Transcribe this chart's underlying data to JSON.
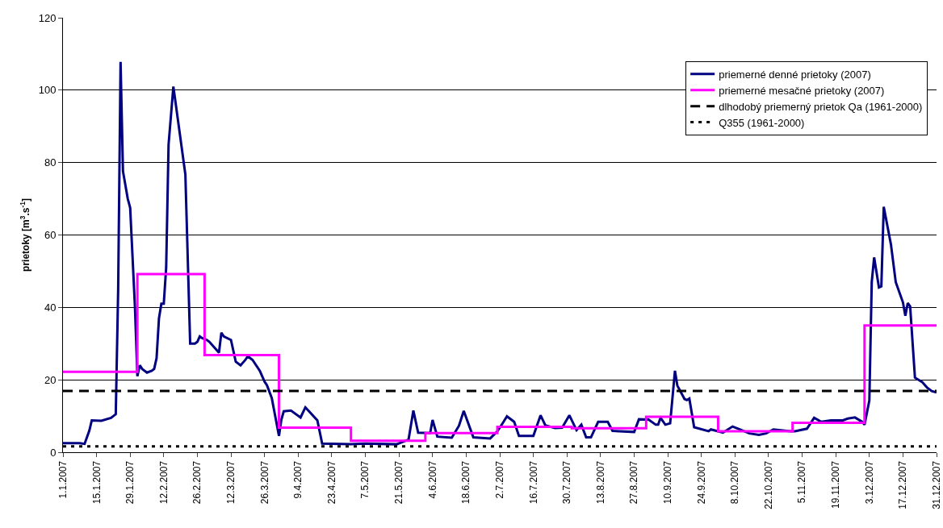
{
  "chart_data": {
    "type": "line",
    "ylabel": "prietoky [m$^{3}$.s$^{-1}$]",
    "ylim": [
      0,
      120
    ],
    "yticks": [
      0,
      20,
      40,
      60,
      80,
      100,
      120
    ],
    "xlim": [
      "2007-01-01",
      "2007-12-31"
    ],
    "xticks": [
      {
        "value": "2007-01-01",
        "label": "1.1.2007"
      },
      {
        "value": "2007-01-15",
        "label": "15.1.2007"
      },
      {
        "value": "2007-01-29",
        "label": "29.1.2007"
      },
      {
        "value": "2007-02-12",
        "label": "12.2.2007"
      },
      {
        "value": "2007-02-26",
        "label": "26.2.2007"
      },
      {
        "value": "2007-03-12",
        "label": "12.3.2007"
      },
      {
        "value": "2007-03-26",
        "label": "26.3.2007"
      },
      {
        "value": "2007-04-09",
        "label": "9.4.2007"
      },
      {
        "value": "2007-04-23",
        "label": "23.4.2007"
      },
      {
        "value": "2007-05-07",
        "label": "7.5.2007"
      },
      {
        "value": "2007-05-21",
        "label": "21.5.2007"
      },
      {
        "value": "2007-06-04",
        "label": "4.6.2007"
      },
      {
        "value": "2007-06-18",
        "label": "18.6.2007"
      },
      {
        "value": "2007-07-02",
        "label": "2.7.2007"
      },
      {
        "value": "2007-07-16",
        "label": "16.7.2007"
      },
      {
        "value": "2007-07-30",
        "label": "30.7.2007"
      },
      {
        "value": "2007-08-13",
        "label": "13.8.2007"
      },
      {
        "value": "2007-08-27",
        "label": "27.8.2007"
      },
      {
        "value": "2007-09-10",
        "label": "10.9.2007"
      },
      {
        "value": "2007-09-24",
        "label": "24.9.2007"
      },
      {
        "value": "2007-10-08",
        "label": "8.10.2007"
      },
      {
        "value": "2007-10-22",
        "label": "22.10.2007"
      },
      {
        "value": "2007-11-05",
        "label": "5.11.2007"
      },
      {
        "value": "2007-11-19",
        "label": "19.11.2007"
      },
      {
        "value": "2007-12-03",
        "label": "3.12.2007"
      },
      {
        "value": "2007-12-17",
        "label": "17.12.2007"
      },
      {
        "value": "2007-12-31",
        "label": "31.12.2007"
      }
    ],
    "grid": "y",
    "legend": "top right",
    "marker": "none",
    "series": [
      {
        "name": "priemerné denné prietoky (2007)",
        "color": "#000080",
        "line_style": "solid",
        "x": [
          "2007-01-01",
          "2007-01-08",
          "2007-01-10",
          "2007-01-12",
          "2007-01-13",
          "2007-01-17",
          "2007-01-21",
          "2007-01-23",
          "2007-01-24",
          "2007-01-25",
          "2007-01-26",
          "2007-01-28",
          "2007-01-29",
          "2007-01-31",
          "2007-02-01",
          "2007-02-02",
          "2007-02-03",
          "2007-02-05",
          "2007-02-07",
          "2007-02-08",
          "2007-02-09",
          "2007-02-10",
          "2007-02-11",
          "2007-02-12",
          "2007-02-13",
          "2007-02-14",
          "2007-02-16",
          "2007-02-21",
          "2007-02-23",
          "2007-02-25",
          "2007-02-26",
          "2007-02-27",
          "2007-02-28",
          "2007-03-02",
          "2007-03-03",
          "2007-03-05",
          "2007-03-07",
          "2007-03-08",
          "2007-03-09",
          "2007-03-12",
          "2007-03-14",
          "2007-03-16",
          "2007-03-18",
          "2007-03-19",
          "2007-03-21",
          "2007-03-24",
          "2007-03-26",
          "2007-03-27",
          "2007-03-29",
          "2007-04-01",
          "2007-04-02",
          "2007-04-03",
          "2007-04-06",
          "2007-04-10",
          "2007-04-12",
          "2007-04-17",
          "2007-04-19",
          "2007-05-01",
          "2007-05-07",
          "2007-05-20",
          "2007-05-23",
          "2007-05-25",
          "2007-05-27",
          "2007-05-29",
          "2007-06-03",
          "2007-06-04",
          "2007-06-06",
          "2007-06-12",
          "2007-06-15",
          "2007-06-17",
          "2007-06-21",
          "2007-06-28",
          "2007-07-01",
          "2007-07-03",
          "2007-07-05",
          "2007-07-08",
          "2007-07-10",
          "2007-07-16",
          "2007-07-19",
          "2007-07-21",
          "2007-07-25",
          "2007-07-28",
          "2007-07-31",
          "2007-08-03",
          "2007-08-05",
          "2007-08-07",
          "2007-08-09",
          "2007-08-12",
          "2007-08-16",
          "2007-08-18",
          "2007-08-27",
          "2007-08-29",
          "2007-09-02",
          "2007-09-05",
          "2007-09-06",
          "2007-09-07",
          "2007-09-09",
          "2007-09-11",
          "2007-09-13",
          "2007-09-14",
          "2007-09-17",
          "2007-09-18",
          "2007-09-19",
          "2007-09-21",
          "2007-09-27",
          "2007-09-28",
          "2007-10-03",
          "2007-10-07",
          "2007-10-10",
          "2007-10-14",
          "2007-10-18",
          "2007-10-21",
          "2007-10-24",
          "2007-10-28",
          "2007-10-31",
          "2007-11-02",
          "2007-11-07",
          "2007-11-10",
          "2007-11-13",
          "2007-11-17",
          "2007-11-22",
          "2007-11-24",
          "2007-11-27",
          "2007-11-30",
          "2007-12-01",
          "2007-12-03",
          "2007-12-04",
          "2007-12-05",
          "2007-12-07",
          "2007-12-08",
          "2007-12-09",
          "2007-12-12",
          "2007-12-14",
          "2007-12-17",
          "2007-12-18",
          "2007-12-19",
          "2007-12-20",
          "2007-12-22",
          "2007-12-25",
          "2007-12-27",
          "2007-12-29",
          "2007-12-31"
        ],
        "values": [
          2.5,
          2.5,
          2.3,
          6,
          8.8,
          8.7,
          9.5,
          10.5,
          45,
          107.8,
          77.6,
          70,
          67.5,
          40,
          21,
          24,
          23,
          22,
          22.5,
          23,
          26,
          37,
          41,
          41,
          51,
          85,
          101,
          76.7,
          30,
          30,
          30.5,
          32,
          31.5,
          31,
          30.5,
          29,
          27.5,
          33,
          32,
          31,
          25,
          24,
          25.5,
          26.5,
          25.5,
          22.5,
          19.5,
          18.5,
          15,
          4.5,
          9,
          11.3,
          11.5,
          9.6,
          12.4,
          8.8,
          2.4,
          2.2,
          2.4,
          2.2,
          3,
          3.5,
          11.5,
          5.4,
          5.3,
          8.9,
          4.3,
          4,
          7.3,
          11.4,
          4.1,
          3.8,
          5.8,
          7.8,
          9.9,
          8.4,
          4.5,
          4.5,
          10.2,
          7.4,
          6.7,
          6.8,
          10.2,
          6.1,
          7.6,
          4.1,
          4.1,
          8.4,
          8.4,
          5.9,
          5.6,
          9.1,
          9,
          7.6,
          7.6,
          9.5,
          7.6,
          8,
          22.5,
          18.4,
          14.7,
          14.4,
          14.8,
          6.9,
          5.8,
          6.3,
          5.4,
          7.1,
          6.3,
          5.2,
          4.8,
          5.2,
          6.3,
          6,
          5.8,
          5.8,
          6.5,
          9.5,
          8.4,
          8.8,
          8.8,
          9.3,
          9.6,
          8.4,
          7.6,
          14.3,
          47,
          53.8,
          45.5,
          45.8,
          67.8,
          57.4,
          47,
          41.4,
          37.7,
          41.2,
          40.3,
          20.6,
          19.4,
          17.9,
          16.9,
          16.5
        ]
      },
      {
        "name": "priemerné mesačné prietoky (2007)",
        "type": "step",
        "color": "#ff00ff",
        "line_style": "solid",
        "x": [
          "2007-01-01",
          "2007-02-01",
          "2007-03-01",
          "2007-04-01",
          "2007-05-01",
          "2007-06-01",
          "2007-07-01",
          "2007-08-01",
          "2007-09-01",
          "2007-10-01",
          "2007-11-01",
          "2007-12-01",
          "2007-12-31"
        ],
        "values": [
          22.2,
          49.2,
          26.8,
          6.8,
          3.2,
          5.3,
          7.0,
          6.6,
          9.8,
          5.8,
          8.1,
          35,
          35
        ]
      },
      {
        "name": "dlhodobý priemerný prietok Qa (1961-2000)",
        "color": "#000000",
        "line_style": "dashed",
        "x": [
          "2007-01-01",
          "2007-12-31"
        ],
        "values": [
          16.9,
          16.9
        ]
      },
      {
        "name": "Q355 (1961-2000)",
        "color": "#000000",
        "line_style": "dotted",
        "x": [
          "2007-01-01",
          "2007-12-31"
        ],
        "values": [
          1.6,
          1.6
        ]
      }
    ]
  }
}
